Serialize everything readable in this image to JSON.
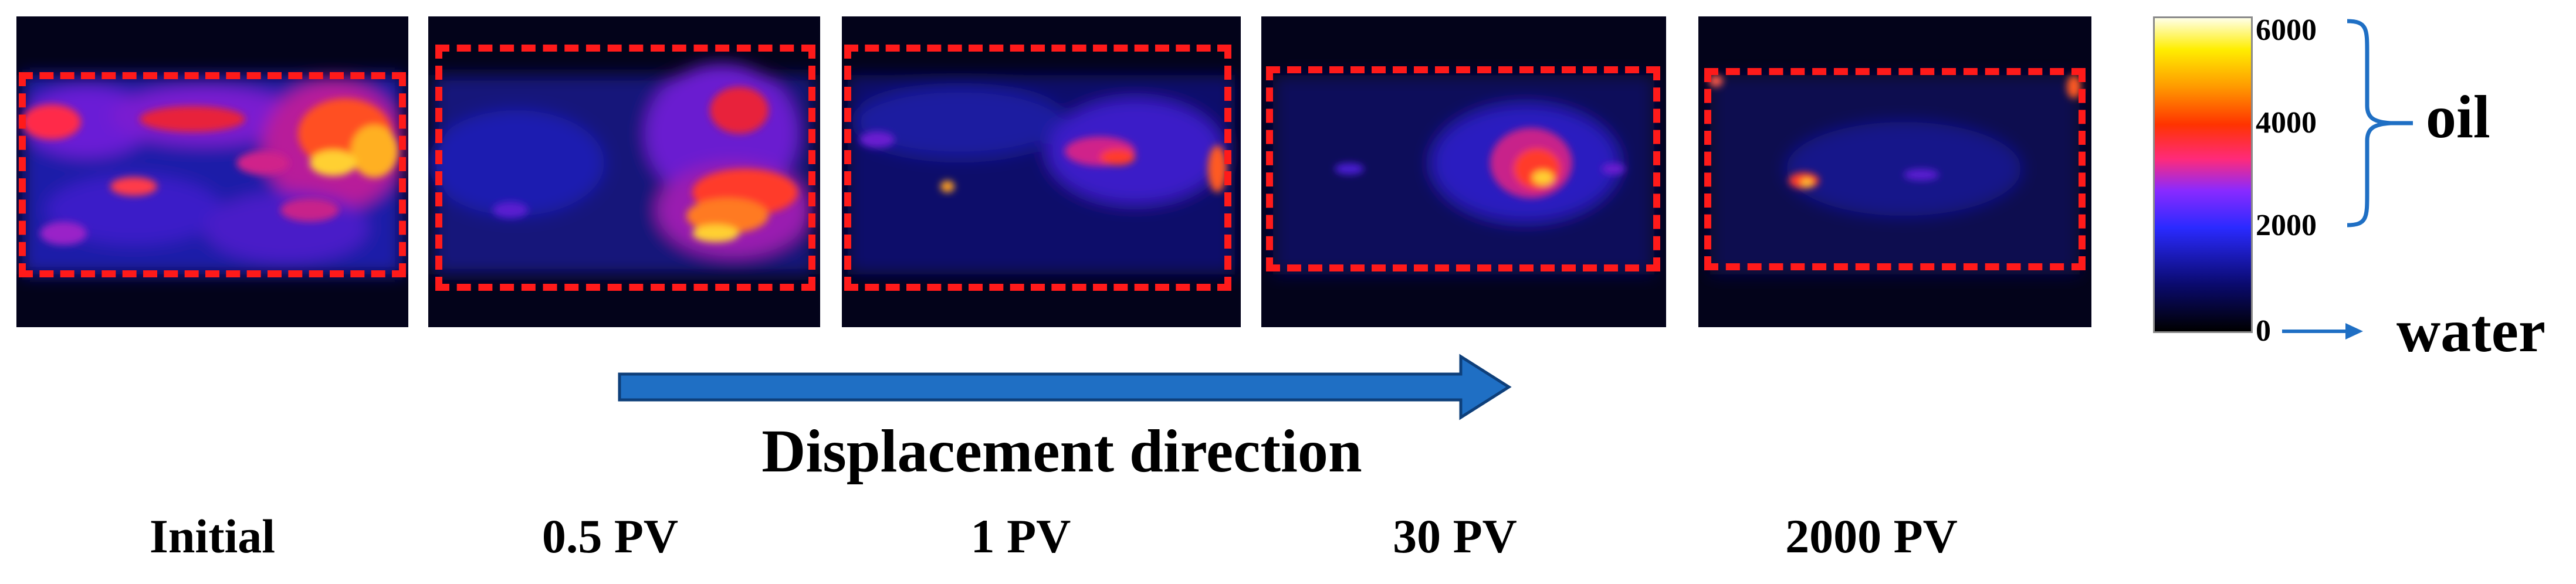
{
  "panels": [
    {
      "name": "initial",
      "label": "Initial"
    },
    {
      "name": "0-5pv",
      "label": "0.5 PV"
    },
    {
      "name": "1pv",
      "label": "1 PV"
    },
    {
      "name": "30pv",
      "label": "30 PV"
    },
    {
      "name": "2000pv",
      "label": "2000 PV"
    }
  ],
  "arrow": {
    "label": "Displacement direction",
    "color": "#1f6fc4"
  },
  "roi_color": "#ff1a1a",
  "colorbar": {
    "ticks": [
      "6000",
      "4000",
      "2000",
      "0"
    ],
    "upper_phase": "oil",
    "lower_phase": "water",
    "accent_color": "#1f6fc4"
  }
}
